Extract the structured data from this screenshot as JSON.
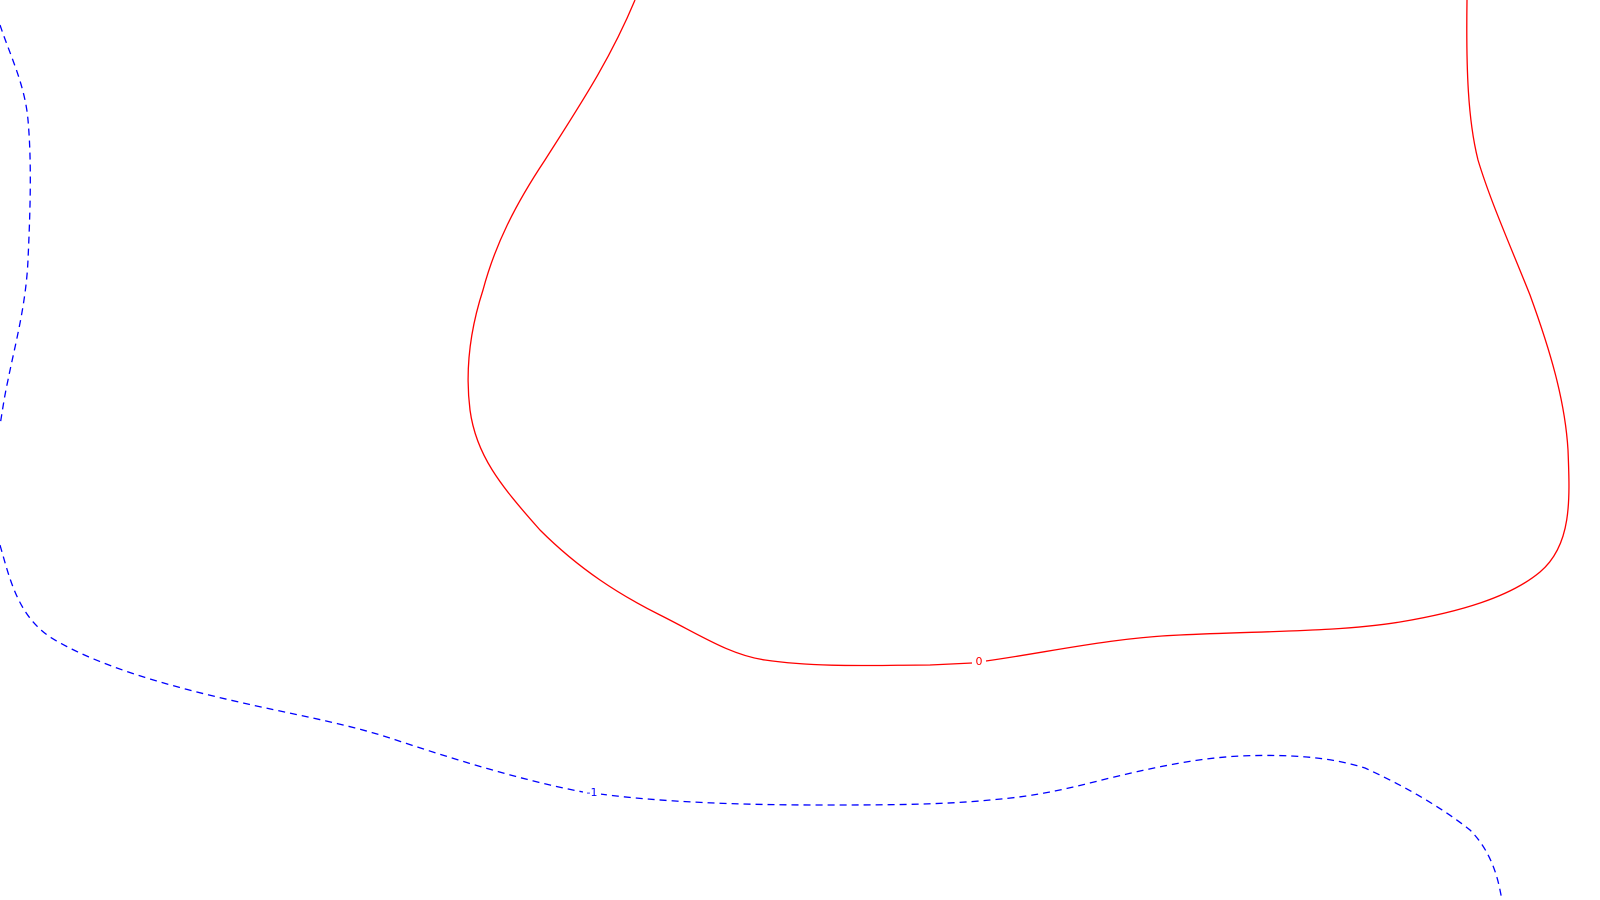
{
  "contour_plot": {
    "background_color": "#ffffff",
    "levels": [
      {
        "label": "0",
        "color": "#ff0000",
        "line_style": "solid"
      },
      {
        "label": "-1",
        "color": "#0000ff",
        "line_style": "dashed"
      }
    ]
  }
}
